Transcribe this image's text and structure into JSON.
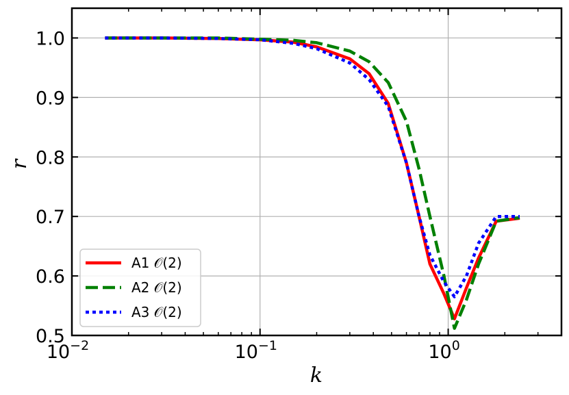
{
  "chart_data": {
    "type": "line",
    "xlabel": "k",
    "ylabel": "r",
    "xscale": "log",
    "xlim": [
      0.01,
      4.0
    ],
    "ylim": [
      0.5,
      1.05
    ],
    "grid": true,
    "legend_position": "lower-left",
    "x_ticks": [
      {
        "value": 0.01,
        "label": "10",
        "exp": "−2"
      },
      {
        "value": 0.1,
        "label": "10",
        "exp": "−1"
      },
      {
        "value": 1.0,
        "label": "10",
        "exp": "0"
      }
    ],
    "y_ticks": [
      {
        "value": 0.5,
        "label": "0.5"
      },
      {
        "value": 0.6,
        "label": "0.6"
      },
      {
        "value": 0.7,
        "label": "0.7"
      },
      {
        "value": 0.8,
        "label": "0.8"
      },
      {
        "value": 0.9,
        "label": "0.9"
      },
      {
        "value": 1.0,
        "label": "1.0"
      }
    ],
    "series": [
      {
        "name": "A1 𝒪(2)",
        "color": "#ff0000",
        "dash": "solid",
        "x": [
          0.015,
          0.03,
          0.06,
          0.1,
          0.15,
          0.2,
          0.3,
          0.38,
          0.48,
          0.6,
          0.7,
          0.8,
          0.95,
          1.08,
          1.25,
          1.45,
          1.8,
          2.4
        ],
        "y": [
          1.0,
          1.0,
          0.999,
          0.997,
          0.993,
          0.985,
          0.965,
          0.94,
          0.89,
          0.79,
          0.7,
          0.62,
          0.57,
          0.528,
          0.58,
          0.63,
          0.692,
          0.697
        ]
      },
      {
        "name": "A2 𝒪(2)",
        "color": "#008000",
        "dash": "dashed",
        "x": [
          0.015,
          0.03,
          0.06,
          0.1,
          0.15,
          0.2,
          0.3,
          0.38,
          0.48,
          0.6,
          0.7,
          0.8,
          0.95,
          1.08,
          1.25,
          1.45,
          1.8,
          2.4
        ],
        "y": [
          1.0,
          1.0,
          1.0,
          0.998,
          0.996,
          0.992,
          0.978,
          0.96,
          0.925,
          0.86,
          0.78,
          0.7,
          0.6,
          0.512,
          0.56,
          0.62,
          0.692,
          0.698
        ]
      },
      {
        "name": "A3 𝒪(2)",
        "color": "#0000ff",
        "dash": "dotted",
        "x": [
          0.015,
          0.03,
          0.06,
          0.1,
          0.15,
          0.2,
          0.3,
          0.38,
          0.48,
          0.6,
          0.7,
          0.8,
          0.95,
          1.08,
          1.25,
          1.45,
          1.8,
          2.4
        ],
        "y": [
          1.0,
          1.0,
          0.999,
          0.997,
          0.991,
          0.982,
          0.958,
          0.93,
          0.885,
          0.79,
          0.7,
          0.635,
          0.59,
          0.565,
          0.6,
          0.655,
          0.7,
          0.7
        ]
      }
    ]
  }
}
